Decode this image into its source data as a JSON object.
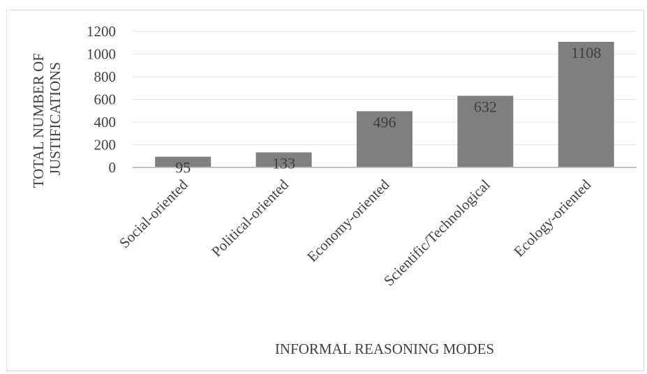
{
  "chart_data": {
    "type": "bar",
    "categories": [
      "Social-oriented",
      "Political-oriented",
      "Economy-oriented",
      "Scientific/Technological",
      "Ecology-oriented"
    ],
    "values": [
      95,
      133,
      496,
      632,
      1108
    ],
    "data_labels": [
      "95",
      "133",
      "496",
      "632",
      "1108"
    ],
    "title": "",
    "xlabel": "INFORMAL REASONING MODES",
    "ylabel_lines": [
      "TOTAL NUMBER OF",
      "JUSTIFICATIONS"
    ],
    "yticks": [
      0,
      200,
      400,
      600,
      800,
      1000,
      1200
    ],
    "ylim": [
      0,
      1200
    ],
    "grid": true,
    "legend": "none",
    "bar_color": "#7f7f7f",
    "grid_color": "#e6e6e6",
    "axis_color": "#bfbfbf"
  }
}
